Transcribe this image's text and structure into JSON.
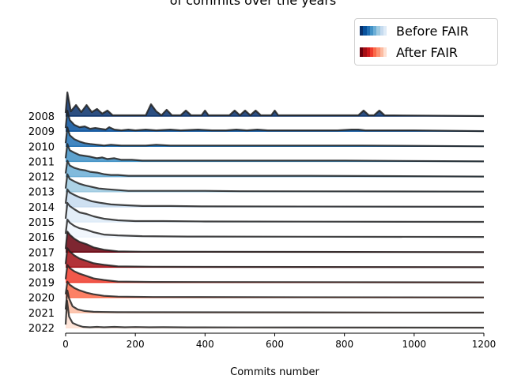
{
  "chart_data": {
    "type": "ridgeline",
    "title": "of commits over the years",
    "xlabel": "Commits number",
    "ylabel": "",
    "xlim": [
      0,
      1200
    ],
    "xticks": [
      0,
      200,
      400,
      600,
      800,
      1000,
      1200
    ],
    "grid": false,
    "legend_position": "top-right",
    "legend": [
      {
        "label": "Before FAIR",
        "colors": [
          "#08306b",
          "#08519c",
          "#2171b5",
          "#4292c6",
          "#6baed6",
          "#9ecae1",
          "#c6dbef",
          "#deebf7"
        ]
      },
      {
        "label": "After FAIR",
        "colors": [
          "#67000d",
          "#a50f15",
          "#cb181d",
          "#ef3b2c",
          "#fb6a4a",
          "#fc9272",
          "#fcbba1",
          "#fee0d2"
        ]
      }
    ],
    "series": [
      {
        "year": "2008",
        "fill": "#08306b",
        "points": [
          [
            0,
            4
          ],
          [
            5,
            30
          ],
          [
            15,
            6
          ],
          [
            30,
            14
          ],
          [
            45,
            5
          ],
          [
            60,
            14
          ],
          [
            75,
            5
          ],
          [
            90,
            9
          ],
          [
            105,
            3
          ],
          [
            120,
            7
          ],
          [
            135,
            1
          ],
          [
            230,
            1
          ],
          [
            245,
            15
          ],
          [
            260,
            6
          ],
          [
            275,
            1
          ],
          [
            290,
            8
          ],
          [
            305,
            1
          ],
          [
            330,
            1
          ],
          [
            345,
            7
          ],
          [
            360,
            1
          ],
          [
            390,
            1
          ],
          [
            400,
            7
          ],
          [
            410,
            1
          ],
          [
            470,
            1
          ],
          [
            485,
            7
          ],
          [
            500,
            1
          ],
          [
            515,
            7
          ],
          [
            530,
            1
          ],
          [
            545,
            7
          ],
          [
            560,
            1
          ],
          [
            590,
            1
          ],
          [
            600,
            7
          ],
          [
            610,
            1
          ],
          [
            840,
            1
          ],
          [
            855,
            7
          ],
          [
            870,
            1
          ],
          [
            885,
            1
          ],
          [
            900,
            7
          ],
          [
            915,
            1
          ],
          [
            1200,
            0
          ]
        ]
      },
      {
        "year": "2009",
        "fill": "#08519c",
        "points": [
          [
            0,
            4
          ],
          [
            5,
            26
          ],
          [
            12,
            14
          ],
          [
            25,
            8
          ],
          [
            40,
            5
          ],
          [
            55,
            6
          ],
          [
            70,
            3
          ],
          [
            85,
            4
          ],
          [
            100,
            3
          ],
          [
            115,
            2
          ],
          [
            125,
            5
          ],
          [
            140,
            2
          ],
          [
            160,
            1
          ],
          [
            180,
            2
          ],
          [
            200,
            1
          ],
          [
            230,
            2
          ],
          [
            260,
            1
          ],
          [
            300,
            2
          ],
          [
            330,
            1
          ],
          [
            380,
            2
          ],
          [
            420,
            1
          ],
          [
            460,
            1
          ],
          [
            490,
            2
          ],
          [
            520,
            1
          ],
          [
            550,
            2
          ],
          [
            580,
            1
          ],
          [
            650,
            1
          ],
          [
            700,
            1
          ],
          [
            780,
            1
          ],
          [
            820,
            2
          ],
          [
            840,
            2
          ],
          [
            860,
            1
          ],
          [
            900,
            1
          ],
          [
            1000,
            1
          ],
          [
            1200,
            0
          ]
        ]
      },
      {
        "year": "2010",
        "fill": "#2171b5",
        "points": [
          [
            0,
            4
          ],
          [
            5,
            24
          ],
          [
            12,
            14
          ],
          [
            25,
            9
          ],
          [
            40,
            6
          ],
          [
            55,
            4
          ],
          [
            70,
            3
          ],
          [
            90,
            2
          ],
          [
            110,
            1
          ],
          [
            130,
            2
          ],
          [
            160,
            1
          ],
          [
            200,
            1
          ],
          [
            230,
            1
          ],
          [
            260,
            2
          ],
          [
            300,
            1
          ],
          [
            350,
            1
          ],
          [
            400,
            1
          ],
          [
            450,
            1
          ],
          [
            500,
            1
          ],
          [
            600,
            1
          ],
          [
            700,
            1
          ],
          [
            740,
            1
          ],
          [
            760,
            1
          ],
          [
            800,
            1
          ],
          [
            850,
            1
          ],
          [
            1200,
            0
          ]
        ]
      },
      {
        "year": "2011",
        "fill": "#4292c6",
        "points": [
          [
            0,
            4
          ],
          [
            5,
            22
          ],
          [
            12,
            14
          ],
          [
            25,
            11
          ],
          [
            40,
            8
          ],
          [
            55,
            7
          ],
          [
            70,
            6
          ],
          [
            90,
            4
          ],
          [
            105,
            5
          ],
          [
            120,
            3
          ],
          [
            140,
            4
          ],
          [
            160,
            2
          ],
          [
            190,
            2
          ],
          [
            220,
            1
          ],
          [
            260,
            1
          ],
          [
            300,
            1
          ],
          [
            360,
            1
          ],
          [
            420,
            1
          ],
          [
            500,
            1
          ],
          [
            600,
            1
          ],
          [
            700,
            1
          ],
          [
            800,
            1
          ],
          [
            1200,
            0
          ]
        ]
      },
      {
        "year": "2012",
        "fill": "#6baed6",
        "points": [
          [
            0,
            4
          ],
          [
            5,
            20
          ],
          [
            12,
            14
          ],
          [
            25,
            11
          ],
          [
            40,
            9
          ],
          [
            55,
            8
          ],
          [
            70,
            6
          ],
          [
            90,
            5
          ],
          [
            110,
            3
          ],
          [
            130,
            2
          ],
          [
            150,
            2
          ],
          [
            180,
            1
          ],
          [
            220,
            1
          ],
          [
            260,
            1
          ],
          [
            320,
            1
          ],
          [
            400,
            1
          ],
          [
            500,
            1
          ],
          [
            600,
            1
          ],
          [
            700,
            1
          ],
          [
            1200,
            0
          ]
        ]
      },
      {
        "year": "2013",
        "fill": "#9ecae1",
        "points": [
          [
            0,
            4
          ],
          [
            5,
            22
          ],
          [
            12,
            16
          ],
          [
            25,
            13
          ],
          [
            40,
            10
          ],
          [
            55,
            8
          ],
          [
            75,
            6
          ],
          [
            95,
            4
          ],
          [
            120,
            3
          ],
          [
            150,
            2
          ],
          [
            180,
            1
          ],
          [
            230,
            1
          ],
          [
            300,
            1
          ],
          [
            400,
            1
          ],
          [
            500,
            0.5
          ],
          [
            1200,
            0
          ]
        ]
      },
      {
        "year": "2014",
        "fill": "#c6dbef",
        "points": [
          [
            0,
            4
          ],
          [
            5,
            22
          ],
          [
            12,
            18
          ],
          [
            25,
            15
          ],
          [
            40,
            12
          ],
          [
            55,
            10
          ],
          [
            75,
            7
          ],
          [
            100,
            5
          ],
          [
            130,
            3
          ],
          [
            170,
            2
          ],
          [
            220,
            1
          ],
          [
            300,
            1
          ],
          [
            400,
            0.5
          ],
          [
            1200,
            0
          ]
        ]
      },
      {
        "year": "2015",
        "fill": "#deebf7",
        "points": [
          [
            0,
            4
          ],
          [
            5,
            24
          ],
          [
            12,
            20
          ],
          [
            25,
            16
          ],
          [
            40,
            12
          ],
          [
            60,
            10
          ],
          [
            80,
            7
          ],
          [
            110,
            4
          ],
          [
            150,
            2
          ],
          [
            200,
            1
          ],
          [
            280,
            1
          ],
          [
            400,
            0.5
          ],
          [
            1200,
            0
          ]
        ]
      },
      {
        "year": "2016",
        "fill": "#eef4fb",
        "points": [
          [
            0,
            4
          ],
          [
            5,
            22
          ],
          [
            12,
            18
          ],
          [
            25,
            14
          ],
          [
            40,
            11
          ],
          [
            60,
            9
          ],
          [
            80,
            6
          ],
          [
            110,
            3
          ],
          [
            150,
            2
          ],
          [
            220,
            1
          ],
          [
            350,
            0.5
          ],
          [
            1200,
            0
          ]
        ]
      },
      {
        "year": "2017",
        "fill": "#67000d",
        "points": [
          [
            0,
            4
          ],
          [
            5,
            26
          ],
          [
            12,
            22
          ],
          [
            25,
            17
          ],
          [
            40,
            13
          ],
          [
            60,
            10
          ],
          [
            80,
            6
          ],
          [
            110,
            3
          ],
          [
            150,
            1
          ],
          [
            220,
            0.5
          ],
          [
            1200,
            0
          ]
        ]
      },
      {
        "year": "2018",
        "fill": "#a50f15",
        "points": [
          [
            0,
            4
          ],
          [
            5,
            24
          ],
          [
            12,
            20
          ],
          [
            25,
            15
          ],
          [
            40,
            11
          ],
          [
            60,
            8
          ],
          [
            80,
            5
          ],
          [
            110,
            3
          ],
          [
            150,
            1
          ],
          [
            250,
            0.5
          ],
          [
            1200,
            0
          ]
        ]
      },
      {
        "year": "2019",
        "fill": "#ef3b2c",
        "points": [
          [
            0,
            4
          ],
          [
            5,
            22
          ],
          [
            12,
            18
          ],
          [
            25,
            14
          ],
          [
            40,
            11
          ],
          [
            60,
            8
          ],
          [
            80,
            5
          ],
          [
            110,
            3
          ],
          [
            150,
            1
          ],
          [
            250,
            0.5
          ],
          [
            1200,
            0
          ]
        ]
      },
      {
        "year": "2020",
        "fill": "#fb6a4a",
        "points": [
          [
            0,
            4
          ],
          [
            5,
            20
          ],
          [
            12,
            16
          ],
          [
            25,
            12
          ],
          [
            40,
            9
          ],
          [
            60,
            6
          ],
          [
            80,
            4
          ],
          [
            110,
            2
          ],
          [
            150,
            1
          ],
          [
            250,
            0.5
          ],
          [
            1200,
            0
          ]
        ]
      },
      {
        "year": "2021",
        "fill": "#fcbba1",
        "points": [
          [
            0,
            4
          ],
          [
            5,
            28
          ],
          [
            10,
            18
          ],
          [
            20,
            8
          ],
          [
            35,
            4
          ],
          [
            55,
            2
          ],
          [
            80,
            1
          ],
          [
            150,
            0.5
          ],
          [
            1200,
            0
          ]
        ]
      },
      {
        "year": "2022",
        "fill": "#fee0d2",
        "points": [
          [
            0,
            4
          ],
          [
            4,
            34
          ],
          [
            10,
            14
          ],
          [
            20,
            6
          ],
          [
            35,
            3
          ],
          [
            50,
            1
          ],
          [
            70,
            0.5
          ],
          [
            90,
            1
          ],
          [
            110,
            0.5
          ],
          [
            140,
            1
          ],
          [
            170,
            0.5
          ],
          [
            200,
            0.8
          ],
          [
            240,
            0.5
          ],
          [
            280,
            0.6
          ],
          [
            350,
            0.4
          ],
          [
            500,
            0.3
          ],
          [
            1200,
            0
          ]
        ]
      }
    ]
  }
}
